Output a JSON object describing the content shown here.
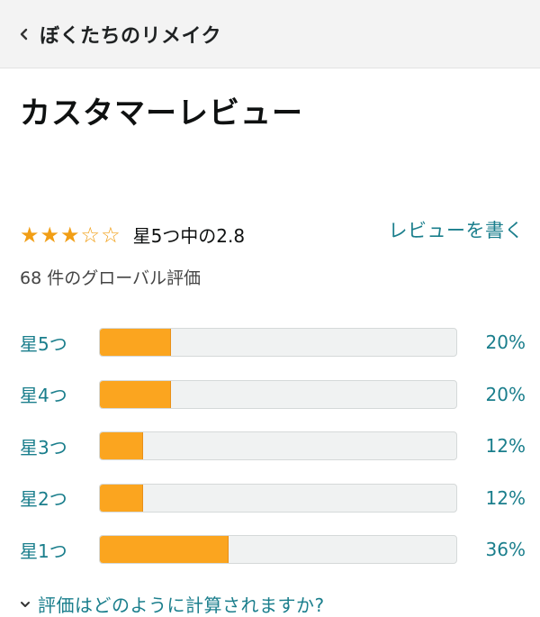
{
  "header": {
    "back_icon": "chevron-left-icon",
    "title": "ぼくたちのリメイク"
  },
  "reviews": {
    "heading": "カスタマーレビュー",
    "stars_display": "★★★☆☆",
    "rating_value": 2.8,
    "rating_text": "星5つ中の2.8",
    "write_review": "レビューを書く",
    "global_count": "68 件のグローバル評価",
    "star_color": "#f19e15",
    "link_color": "#1a7e8c",
    "bar_color": "#fba51f"
  },
  "chart_data": {
    "type": "bar",
    "categories": [
      "星5つ",
      "星4つ",
      "星3つ",
      "星2つ",
      "星1つ"
    ],
    "values": [
      20,
      20,
      12,
      12,
      36
    ],
    "labels": [
      "20%",
      "20%",
      "12%",
      "12%",
      "36%"
    ]
  },
  "footer": {
    "icon": "chevron-down-icon",
    "how_calculated": "評価はどのように計算されますか?"
  }
}
